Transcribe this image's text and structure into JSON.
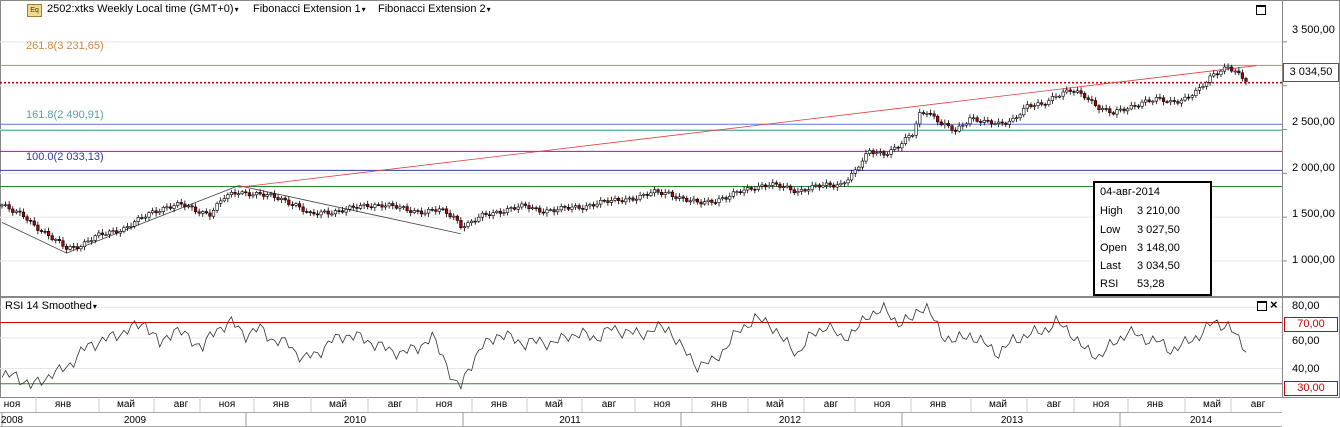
{
  "header": {
    "symbol_label": "2502:xtks Weekly Local time (GMT+0)",
    "fib1_label": "Fibonacci Extension 1",
    "fib2_label": "Fibonacci Extension 2",
    "caret": "▾"
  },
  "fib_levels": [
    {
      "label": "261.8(3 231,65)",
      "value": 3231.65,
      "color": "#d0883c"
    },
    {
      "label": "161.8(2 490,91)",
      "value": 2490.91,
      "color": "#5aa0a0"
    },
    {
      "label": "100.0(2 033,13)",
      "value": 2033.13,
      "color": "#3040a0"
    }
  ],
  "extra_level_lines": [
    {
      "value": 2560,
      "color": "#5a78e0"
    },
    {
      "value": 2250,
      "color": "#c000c0"
    },
    {
      "value": 1850,
      "color": "#228833"
    }
  ],
  "last_price": {
    "label": "3 034,50",
    "value": 3034.5,
    "color": "#cc0000"
  },
  "tooltip": {
    "date": "04-авг-2014",
    "rows": [
      {
        "k": "High",
        "v": "3 210,00"
      },
      {
        "k": "Low",
        "v": "3 027,50"
      },
      {
        "k": "Open",
        "v": "3 148,00"
      },
      {
        "k": "Last",
        "v": "3 034,50"
      },
      {
        "k": "RSI",
        "v": "53,28"
      }
    ]
  },
  "rsi_panel": {
    "title": "RSI 14 Smoothed",
    "upper": {
      "label": "70,00",
      "value": 70,
      "color": "#cc0000"
    },
    "lower": {
      "label": "30,00",
      "value": 30,
      "color": "#228833"
    }
  },
  "chart_data": {
    "type": "candlestick",
    "ylim": [
      600,
      3750
    ],
    "price_ticks": [
      {
        "label": "3 500,00",
        "value": 3500
      },
      {
        "label": "3 000,00",
        "value": 3000
      },
      {
        "label": "2 500,00",
        "value": 2500
      },
      {
        "label": "2 000,00",
        "value": 2000
      },
      {
        "label": "1 500,00",
        "value": 1500
      },
      {
        "label": "1 000,00",
        "value": 1000
      }
    ],
    "rsi_ylim": [
      22,
      86
    ],
    "rsi_ticks": [
      {
        "label": "80,00",
        "value": 80
      },
      {
        "label": "60,00",
        "value": 60
      },
      {
        "label": "40,00",
        "value": 40
      }
    ],
    "month_ticks": [
      "ноя",
      "янв",
      "май",
      "авг",
      "ноя",
      "янв",
      "май",
      "авг",
      "ноя",
      "янв",
      "май",
      "авг",
      "ноя",
      "янв",
      "май",
      "авг",
      "ноя",
      "янв",
      "май",
      "авг",
      "ноя",
      "янв",
      "май",
      "авг"
    ],
    "years": [
      "2008",
      "2009",
      "2010",
      "2011",
      "2012",
      "2013",
      "2014"
    ],
    "price_anchors": [
      [
        0,
        1640
      ],
      [
        3,
        1560
      ],
      [
        6,
        1520
      ],
      [
        10,
        1380
      ],
      [
        14,
        1250
      ],
      [
        18,
        1150
      ],
      [
        22,
        1180
      ],
      [
        26,
        1270
      ],
      [
        30,
        1330
      ],
      [
        34,
        1370
      ],
      [
        38,
        1460
      ],
      [
        42,
        1560
      ],
      [
        46,
        1620
      ],
      [
        50,
        1640
      ],
      [
        54,
        1580
      ],
      [
        58,
        1540
      ],
      [
        62,
        1720
      ],
      [
        66,
        1790
      ],
      [
        70,
        1770
      ],
      [
        74,
        1740
      ],
      [
        78,
        1710
      ],
      [
        82,
        1640
      ],
      [
        86,
        1520
      ],
      [
        90,
        1560
      ],
      [
        94,
        1570
      ],
      [
        98,
        1600
      ],
      [
        102,
        1640
      ],
      [
        106,
        1640
      ],
      [
        110,
        1610
      ],
      [
        114,
        1580
      ],
      [
        118,
        1560
      ],
      [
        122,
        1580
      ],
      [
        126,
        1510
      ],
      [
        128,
        1410
      ],
      [
        130,
        1420
      ],
      [
        134,
        1510
      ],
      [
        138,
        1560
      ],
      [
        142,
        1600
      ],
      [
        146,
        1620
      ],
      [
        150,
        1580
      ],
      [
        154,
        1580
      ],
      [
        158,
        1600
      ],
      [
        162,
        1620
      ],
      [
        166,
        1660
      ],
      [
        170,
        1680
      ],
      [
        174,
        1710
      ],
      [
        178,
        1730
      ],
      [
        182,
        1780
      ],
      [
        186,
        1780
      ],
      [
        190,
        1700
      ],
      [
        194,
        1660
      ],
      [
        198,
        1690
      ],
      [
        202,
        1720
      ],
      [
        206,
        1790
      ],
      [
        210,
        1850
      ],
      [
        214,
        1870
      ],
      [
        218,
        1840
      ],
      [
        222,
        1800
      ],
      [
        226,
        1840
      ],
      [
        230,
        1860
      ],
      [
        234,
        1880
      ],
      [
        238,
        2020
      ],
      [
        242,
        2250
      ],
      [
        246,
        2230
      ],
      [
        250,
        2300
      ],
      [
        254,
        2450
      ],
      [
        256,
        2680
      ],
      [
        258,
        2720
      ],
      [
        262,
        2560
      ],
      [
        266,
        2480
      ],
      [
        270,
        2640
      ],
      [
        274,
        2580
      ],
      [
        278,
        2560
      ],
      [
        282,
        2620
      ],
      [
        286,
        2760
      ],
      [
        290,
        2780
      ],
      [
        294,
        2900
      ],
      [
        298,
        2940
      ],
      [
        302,
        2880
      ],
      [
        306,
        2760
      ],
      [
        310,
        2680
      ],
      [
        314,
        2740
      ],
      [
        318,
        2820
      ],
      [
        322,
        2840
      ],
      [
        326,
        2810
      ],
      [
        330,
        2860
      ],
      [
        334,
        2950
      ],
      [
        338,
        3130
      ],
      [
        342,
        3230
      ],
      [
        345,
        3120
      ],
      [
        347,
        3050
      ]
    ],
    "rsi_anchors": [
      [
        0,
        34
      ],
      [
        4,
        36
      ],
      [
        8,
        28
      ],
      [
        12,
        34
      ],
      [
        16,
        38
      ],
      [
        20,
        45
      ],
      [
        24,
        55
      ],
      [
        28,
        58
      ],
      [
        32,
        62
      ],
      [
        36,
        66
      ],
      [
        40,
        70
      ],
      [
        44,
        55
      ],
      [
        48,
        66
      ],
      [
        52,
        60
      ],
      [
        56,
        54
      ],
      [
        60,
        66
      ],
      [
        64,
        70
      ],
      [
        68,
        62
      ],
      [
        72,
        66
      ],
      [
        76,
        58
      ],
      [
        80,
        56
      ],
      [
        84,
        46
      ],
      [
        88,
        50
      ],
      [
        92,
        58
      ],
      [
        96,
        62
      ],
      [
        100,
        60
      ],
      [
        104,
        56
      ],
      [
        108,
        52
      ],
      [
        112,
        50
      ],
      [
        116,
        54
      ],
      [
        120,
        60
      ],
      [
        124,
        44
      ],
      [
        126,
        30
      ],
      [
        128,
        28
      ],
      [
        130,
        40
      ],
      [
        134,
        54
      ],
      [
        138,
        62
      ],
      [
        142,
        60
      ],
      [
        146,
        56
      ],
      [
        150,
        58
      ],
      [
        154,
        56
      ],
      [
        158,
        62
      ],
      [
        162,
        62
      ],
      [
        166,
        60
      ],
      [
        170,
        66
      ],
      [
        174,
        64
      ],
      [
        178,
        62
      ],
      [
        182,
        66
      ],
      [
        186,
        66
      ],
      [
        190,
        52
      ],
      [
        194,
        42
      ],
      [
        198,
        44
      ],
      [
        202,
        54
      ],
      [
        206,
        66
      ],
      [
        210,
        72
      ],
      [
        214,
        70
      ],
      [
        218,
        58
      ],
      [
        222,
        50
      ],
      [
        226,
        62
      ],
      [
        230,
        68
      ],
      [
        234,
        60
      ],
      [
        238,
        64
      ],
      [
        242,
        76
      ],
      [
        246,
        78
      ],
      [
        250,
        70
      ],
      [
        254,
        72
      ],
      [
        256,
        80
      ],
      [
        258,
        80
      ],
      [
        262,
        62
      ],
      [
        266,
        58
      ],
      [
        270,
        62
      ],
      [
        274,
        56
      ],
      [
        278,
        50
      ],
      [
        282,
        58
      ],
      [
        286,
        62
      ],
      [
        290,
        64
      ],
      [
        294,
        70
      ],
      [
        298,
        64
      ],
      [
        302,
        52
      ],
      [
        306,
        48
      ],
      [
        310,
        56
      ],
      [
        314,
        64
      ],
      [
        318,
        60
      ],
      [
        322,
        58
      ],
      [
        326,
        52
      ],
      [
        330,
        56
      ],
      [
        334,
        62
      ],
      [
        338,
        70
      ],
      [
        342,
        68
      ],
      [
        345,
        58
      ],
      [
        347,
        53
      ]
    ],
    "trendlines": [
      {
        "from": [
          0,
          1440
        ],
        "to": [
          18,
          1090
        ],
        "color": "#444"
      },
      {
        "from": [
          18,
          1090
        ],
        "to": [
          66,
          1860
        ],
        "color": "#444"
      },
      {
        "from": [
          66,
          1860
        ],
        "to": [
          128,
          1310
        ],
        "color": "#444"
      },
      {
        "from": [
          66,
          1840
        ],
        "to": [
          350,
          3230
        ],
        "color": "#e04040"
      }
    ]
  }
}
